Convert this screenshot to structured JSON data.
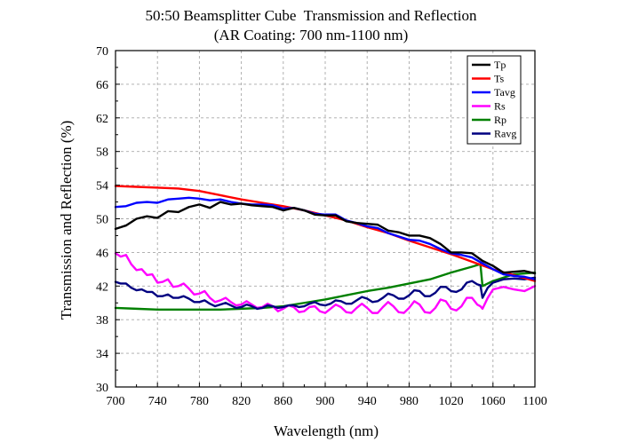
{
  "chart_data": {
    "type": "line",
    "title": "50:50 Beamsplitter Cube  Transmission and Reflection",
    "subtitle": "(AR Coating: 700 nm-1100 nm)",
    "xlabel": "Wavelength (nm)",
    "ylabel": "Transmission and Reflection (%)",
    "xlim": [
      700,
      1100
    ],
    "ylim": [
      30,
      70
    ],
    "xticks": [
      700,
      740,
      780,
      820,
      860,
      900,
      940,
      980,
      1020,
      1060,
      1100
    ],
    "yticks": [
      30,
      34,
      38,
      42,
      46,
      50,
      54,
      58,
      62,
      66,
      70
    ],
    "grid": true,
    "legend_position": "top-right",
    "series": [
      {
        "name": "Tp",
        "color": "#000000",
        "x": [
          700,
          710,
          720,
          730,
          740,
          750,
          760,
          770,
          780,
          790,
          800,
          810,
          820,
          830,
          840,
          850,
          860,
          870,
          880,
          890,
          900,
          910,
          920,
          930,
          940,
          950,
          960,
          970,
          980,
          990,
          1000,
          1010,
          1020,
          1030,
          1040,
          1050,
          1060,
          1070,
          1080,
          1090,
          1100
        ],
        "y": [
          48.8,
          49.2,
          50.0,
          50.3,
          50.1,
          50.9,
          50.8,
          51.4,
          51.7,
          51.3,
          52.0,
          51.7,
          51.8,
          51.6,
          51.5,
          51.4,
          51.0,
          51.3,
          51.0,
          50.5,
          50.4,
          50.4,
          49.7,
          49.5,
          49.4,
          49.3,
          48.6,
          48.4,
          48.0,
          48.0,
          47.7,
          47.0,
          46.0,
          46.0,
          45.9,
          45.0,
          44.4,
          43.6,
          43.7,
          43.8,
          43.5
        ]
      },
      {
        "name": "Ts",
        "color": "#ff0000",
        "x": [
          700,
          720,
          740,
          760,
          780,
          800,
          820,
          840,
          860,
          880,
          900,
          920,
          940,
          960,
          980,
          1000,
          1020,
          1040,
          1060,
          1080,
          1100
        ],
        "y": [
          53.9,
          53.8,
          53.7,
          53.6,
          53.3,
          52.8,
          52.3,
          51.9,
          51.5,
          51.0,
          50.4,
          49.8,
          49.0,
          48.3,
          47.4,
          46.6,
          45.8,
          44.9,
          44.0,
          43.3,
          42.6
        ]
      },
      {
        "name": "Tavg",
        "color": "#0000ff",
        "x": [
          700,
          710,
          720,
          730,
          740,
          750,
          760,
          770,
          780,
          790,
          800,
          810,
          820,
          830,
          840,
          850,
          860,
          870,
          880,
          890,
          900,
          910,
          920,
          930,
          940,
          950,
          960,
          970,
          980,
          990,
          1000,
          1010,
          1020,
          1030,
          1040,
          1050,
          1060,
          1070,
          1080,
          1090,
          1100
        ],
        "y": [
          51.4,
          51.5,
          51.9,
          52.0,
          51.9,
          52.3,
          52.4,
          52.5,
          52.4,
          52.2,
          52.3,
          52.0,
          51.8,
          51.7,
          51.7,
          51.6,
          51.2,
          51.3,
          51.0,
          50.6,
          50.5,
          50.5,
          49.8,
          49.5,
          49.1,
          48.9,
          48.3,
          47.9,
          47.5,
          47.4,
          47.0,
          46.4,
          45.9,
          45.7,
          45.4,
          44.7,
          44.0,
          43.4,
          43.2,
          43.1,
          42.8
        ]
      },
      {
        "name": "Rs",
        "color": "#ff00ff",
        "x": [
          700,
          705,
          710,
          715,
          720,
          725,
          730,
          735,
          740,
          745,
          750,
          755,
          760,
          765,
          770,
          775,
          780,
          785,
          790,
          795,
          800,
          805,
          810,
          815,
          820,
          825,
          830,
          835,
          840,
          845,
          850,
          855,
          860,
          865,
          870,
          875,
          880,
          885,
          890,
          895,
          900,
          905,
          910,
          915,
          920,
          925,
          930,
          935,
          940,
          945,
          950,
          955,
          960,
          965,
          970,
          975,
          980,
          985,
          990,
          995,
          1000,
          1005,
          1010,
          1015,
          1020,
          1025,
          1030,
          1035,
          1040,
          1045,
          1048,
          1050,
          1055,
          1060,
          1070,
          1080,
          1090,
          1100
        ],
        "y": [
          45.9,
          45.5,
          45.7,
          44.6,
          43.9,
          44.0,
          43.3,
          43.4,
          42.4,
          42.5,
          42.8,
          41.9,
          42.0,
          42.3,
          41.7,
          41.0,
          41.1,
          41.4,
          40.6,
          40.1,
          40.3,
          40.6,
          40.1,
          39.7,
          39.8,
          40.2,
          39.8,
          39.4,
          39.5,
          39.9,
          39.6,
          39.0,
          39.3,
          39.7,
          39.5,
          38.9,
          39.0,
          39.5,
          39.6,
          39.0,
          38.8,
          39.3,
          39.8,
          39.5,
          38.9,
          38.8,
          39.4,
          39.9,
          39.4,
          38.8,
          38.8,
          39.5,
          40.1,
          39.6,
          38.9,
          38.8,
          39.4,
          40.2,
          39.8,
          38.9,
          38.8,
          39.4,
          40.4,
          40.2,
          39.3,
          39.1,
          39.6,
          40.6,
          40.6,
          39.8,
          39.6,
          39.3,
          40.6,
          41.6,
          41.9,
          41.6,
          41.4,
          42.0
        ]
      },
      {
        "name": "Rp",
        "color": "#008000",
        "x": [
          700,
          720,
          740,
          760,
          780,
          800,
          820,
          840,
          860,
          880,
          900,
          920,
          940,
          960,
          980,
          1000,
          1020,
          1040,
          1048,
          1050,
          1060,
          1080,
          1100
        ],
        "y": [
          39.4,
          39.3,
          39.2,
          39.2,
          39.2,
          39.2,
          39.3,
          39.4,
          39.6,
          40.0,
          40.4,
          40.9,
          41.4,
          41.8,
          42.3,
          42.8,
          43.6,
          44.3,
          44.6,
          42.0,
          42.6,
          43.4,
          43.6
        ]
      },
      {
        "name": "Ravg",
        "color": "#000080",
        "x": [
          700,
          705,
          710,
          715,
          720,
          725,
          730,
          735,
          740,
          745,
          750,
          755,
          760,
          765,
          770,
          775,
          780,
          785,
          790,
          795,
          800,
          805,
          810,
          815,
          820,
          825,
          830,
          835,
          840,
          845,
          850,
          855,
          860,
          865,
          870,
          875,
          880,
          885,
          890,
          895,
          900,
          905,
          910,
          915,
          920,
          925,
          930,
          935,
          940,
          945,
          950,
          955,
          960,
          965,
          970,
          975,
          980,
          985,
          990,
          995,
          1000,
          1005,
          1010,
          1015,
          1020,
          1025,
          1030,
          1035,
          1040,
          1045,
          1048,
          1050,
          1055,
          1060,
          1070,
          1080,
          1090,
          1100
        ],
        "y": [
          42.5,
          42.3,
          42.3,
          41.8,
          41.5,
          41.6,
          41.3,
          41.3,
          40.8,
          40.8,
          41.0,
          40.6,
          40.6,
          40.8,
          40.5,
          40.1,
          40.1,
          40.3,
          39.9,
          39.6,
          39.8,
          40.0,
          39.7,
          39.4,
          39.5,
          39.8,
          39.6,
          39.3,
          39.4,
          39.7,
          39.6,
          39.4,
          39.5,
          39.7,
          39.7,
          39.5,
          39.6,
          39.9,
          40.1,
          39.8,
          39.7,
          39.9,
          40.3,
          40.2,
          39.9,
          39.9,
          40.3,
          40.7,
          40.5,
          40.1,
          40.2,
          40.6,
          41.1,
          40.9,
          40.5,
          40.5,
          40.9,
          41.5,
          41.4,
          40.8,
          40.8,
          41.2,
          41.9,
          41.9,
          41.4,
          41.3,
          41.6,
          42.4,
          42.6,
          42.2,
          42.1,
          40.6,
          41.8,
          42.4,
          42.8,
          42.9,
          42.8,
          43.0
        ]
      }
    ]
  }
}
